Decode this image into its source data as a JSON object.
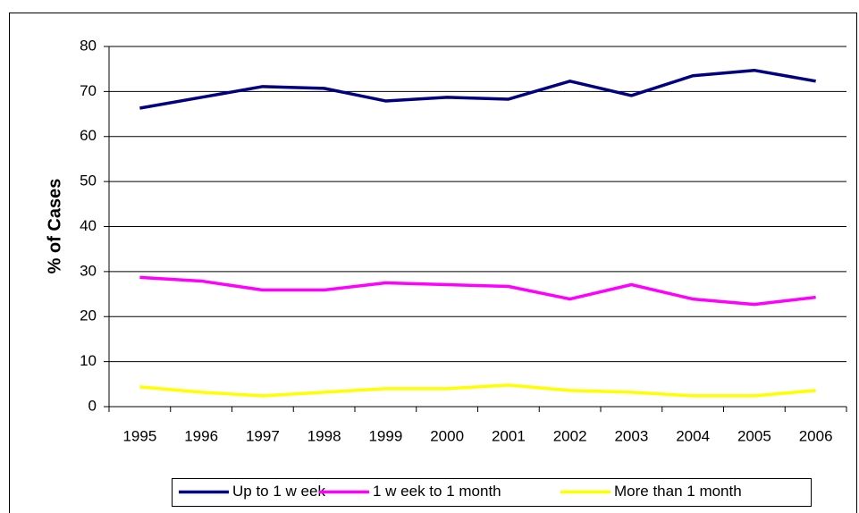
{
  "chart_data": {
    "type": "line",
    "ylabel": "% of Cases",
    "categories": [
      "1995",
      "1996",
      "1997",
      "1998",
      "1999",
      "2000",
      "2001",
      "2002",
      "2003",
      "2004",
      "2005",
      "2006"
    ],
    "series": [
      {
        "name": "Up to 1 w eek",
        "color": "#000080",
        "values": [
          66.3,
          68.7,
          71.1,
          70.7,
          67.9,
          68.7,
          68.3,
          72.3,
          69.1,
          73.5,
          74.7,
          72.3
        ]
      },
      {
        "name": "1 w eek to 1 month",
        "color": "#ff00ff",
        "values": [
          28.7,
          27.9,
          25.9,
          25.9,
          27.5,
          27.1,
          26.7,
          23.9,
          27.1,
          23.9,
          22.7,
          24.3
        ]
      },
      {
        "name": "More than 1 month",
        "color": "#ffff00",
        "values": [
          4.4,
          3.2,
          2.4,
          3.2,
          4.0,
          4.0,
          4.8,
          3.6,
          3.2,
          2.4,
          2.4,
          3.6
        ]
      }
    ],
    "ylim": [
      0,
      80
    ],
    "yticks": [
      0,
      10,
      20,
      30,
      40,
      50,
      60,
      70,
      80
    ],
    "grid": true,
    "legend": "bottom"
  }
}
